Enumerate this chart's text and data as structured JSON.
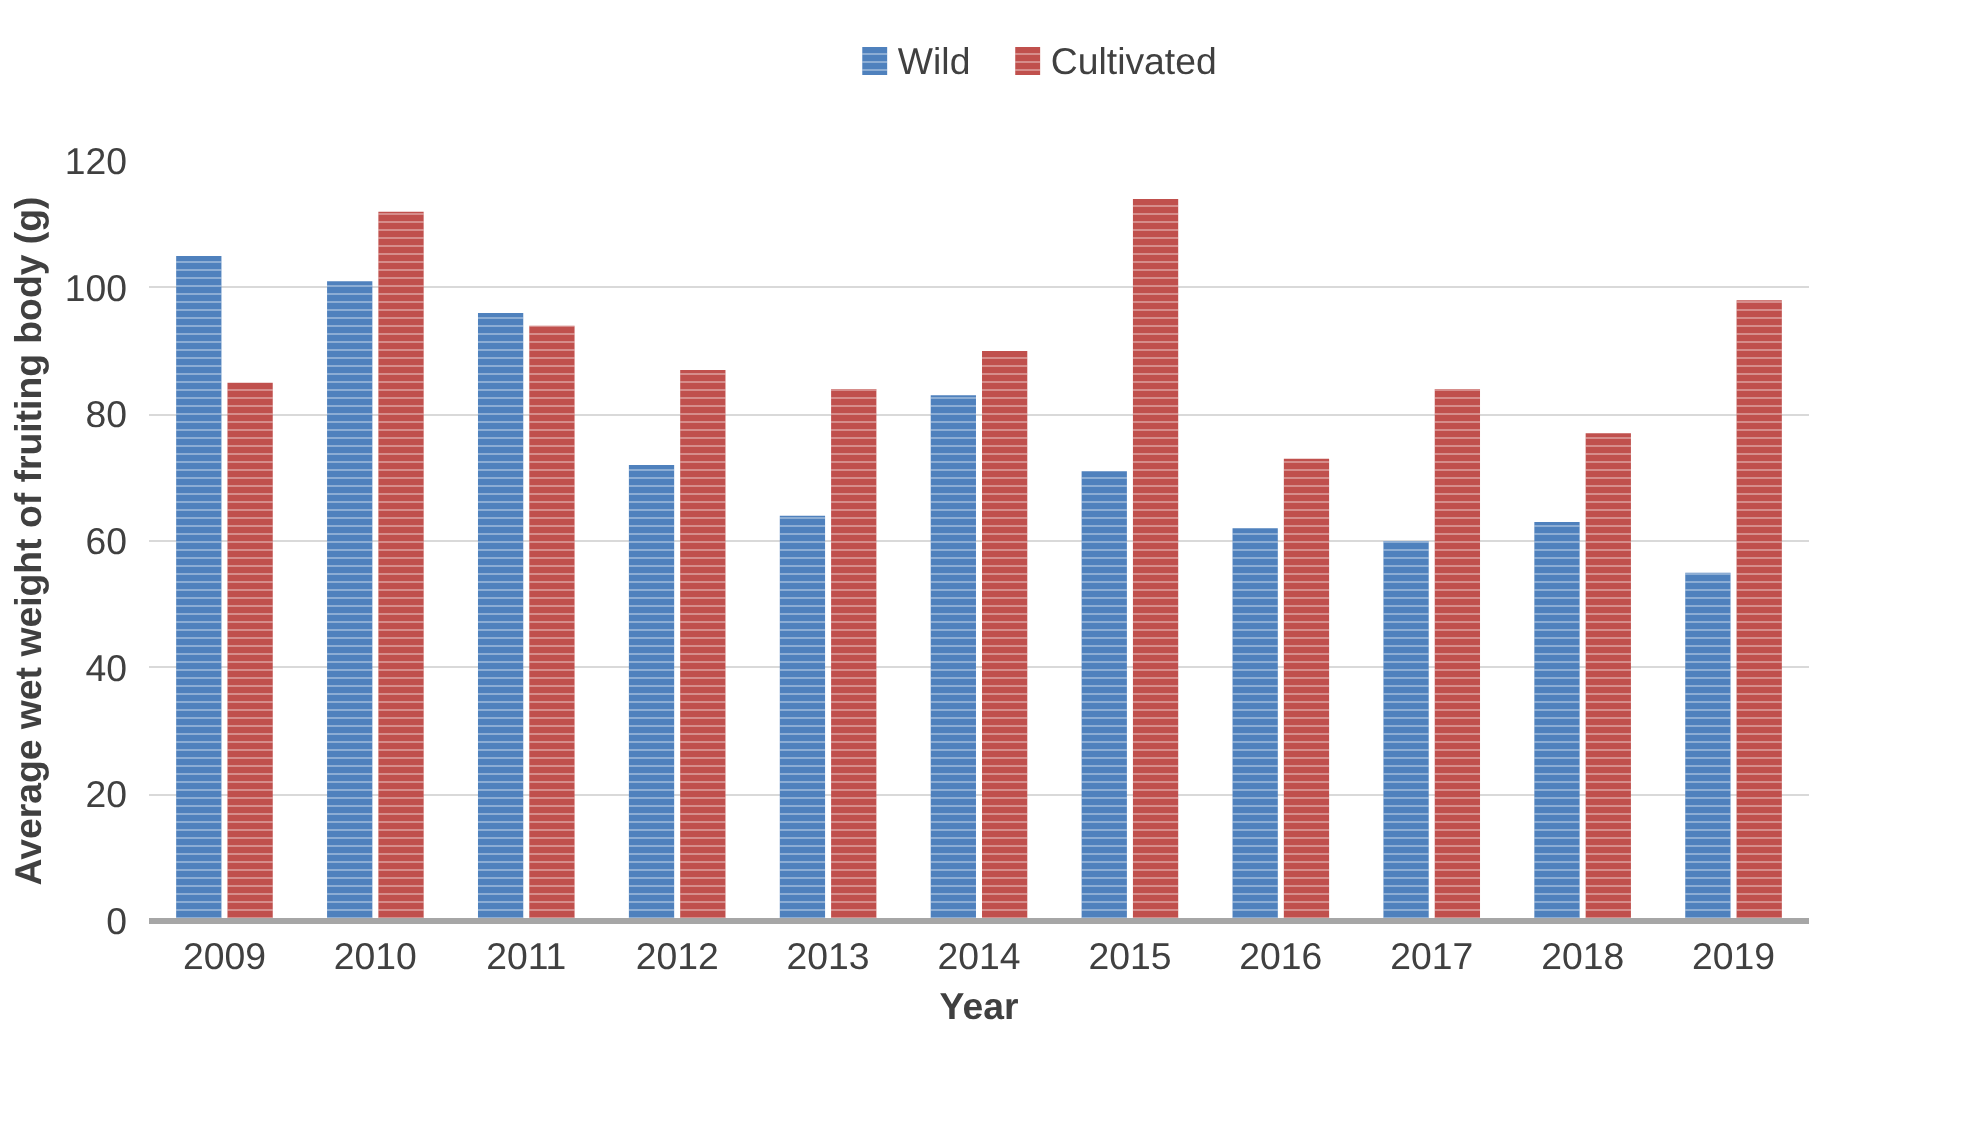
{
  "chart_data": {
    "type": "bar",
    "xlabel": "Year",
    "ylabel": "Average wet weight of fruiting body (g)",
    "categories": [
      "2009",
      "2010",
      "2011",
      "2012",
      "2013",
      "2014",
      "2015",
      "2016",
      "2017",
      "2018",
      "2019"
    ],
    "series": [
      {
        "name": "Wild",
        "color": "#4f81bd",
        "values": [
          105,
          101,
          96,
          72,
          64,
          83,
          71,
          62,
          60,
          63,
          55
        ]
      },
      {
        "name": "Cultivated",
        "color": "#c0504d",
        "values": [
          85,
          112,
          94,
          87,
          84,
          90,
          114,
          73,
          84,
          77,
          98
        ]
      }
    ],
    "ylim": [
      0,
      120
    ],
    "yticks": [
      0,
      20,
      40,
      60,
      80,
      100,
      120
    ],
    "grid": "y",
    "legend": "top"
  }
}
